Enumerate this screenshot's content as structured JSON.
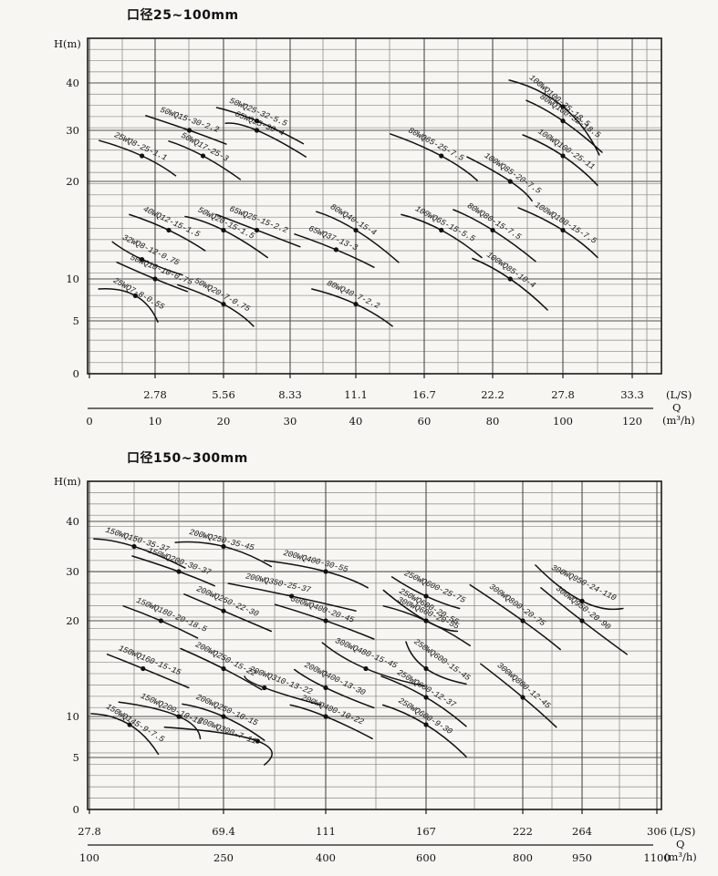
{
  "chart_data": [
    {
      "type": "line",
      "title": "口径25~100mm",
      "ylabel": "H(m)",
      "xlabel": "Q",
      "units": {
        "ls": "(L/S)",
        "q": "Q",
        "m3h": "(m³/h)"
      },
      "ylim": [
        0,
        50
      ],
      "grid": "on",
      "y_ticks": [
        {
          "label": "40",
          "h": 40
        },
        {
          "label": "30",
          "h": 30
        },
        {
          "label": "20",
          "h": 20
        },
        {
          "label": "10",
          "h": 10
        },
        {
          "label": "5",
          "h": 5
        },
        {
          "label": "0",
          "h": 0
        }
      ],
      "x_ticks_ls": [
        {
          "label": "2.78",
          "q": 10
        },
        {
          "label": "5.56",
          "q": 20
        },
        {
          "label": "8.33",
          "q": 30
        },
        {
          "label": "11.1",
          "q": 40
        },
        {
          "label": "16.7",
          "q": 60
        },
        {
          "label": "22.2",
          "q": 80
        },
        {
          "label": "27.8",
          "q": 100
        },
        {
          "label": "33.3",
          "q": 120
        }
      ],
      "x_ticks_m3h": [
        {
          "label": "0",
          "q": 0
        },
        {
          "label": "10",
          "q": 10
        },
        {
          "label": "20",
          "q": 20
        },
        {
          "label": "30",
          "q": 30
        },
        {
          "label": "40",
          "q": 40
        },
        {
          "label": "60",
          "q": 60
        },
        {
          "label": "80",
          "q": 80
        },
        {
          "label": "100",
          "q": 100
        },
        {
          "label": "120",
          "q": 120
        }
      ],
      "series": [
        {
          "name": "25WQ8-25-1.1",
          "q": 8,
          "h": 25,
          "kw": 1.1,
          "cq": [
            1.5,
            13
          ],
          "ch": [
            28,
            21.1
          ]
        },
        {
          "name": "50WQ15-30-2.2",
          "q": 15,
          "h": 30,
          "kw": 2.2,
          "cq": [
            8.6,
            20.4
          ],
          "ch": [
            33.1,
            27.3
          ]
        },
        {
          "name": "50WQ17-25-3",
          "q": 17,
          "h": 25,
          "kw": 3,
          "cq": [
            12,
            22.5
          ],
          "ch": [
            27.9,
            20.4
          ]
        },
        {
          "name": "50WQ25-32-5.5",
          "q": 25,
          "h": 32,
          "kw": 5.5,
          "cq": [
            19,
            32
          ],
          "ch": [
            34.8,
            27.4
          ]
        },
        {
          "name": "65WQ25-30-4",
          "q": 25,
          "h": 30,
          "kw": 4,
          "cq": [
            20.3,
            32.4
          ],
          "ch": [
            31.5,
            24.8
          ]
        },
        {
          "name": "100WQ100-35-18.5",
          "q": 100,
          "h": 35,
          "kw": 18.5,
          "cq": [
            84.7,
            110.5
          ],
          "ch": [
            40.6,
            25.2
          ]
        },
        {
          "name": "80WQ100-32-18.5",
          "q": 100,
          "h": 32,
          "kw": 18.5,
          "cq": [
            89.6,
            111.3
          ],
          "ch": [
            36.3,
            25.7
          ]
        },
        {
          "name": "100WQ100-25-11",
          "q": 100,
          "h": 25,
          "kw": 11,
          "cq": [
            88.6,
            110
          ],
          "ch": [
            29.1,
            19.6
          ]
        },
        {
          "name": "80WQ65-25-7.5",
          "q": 65,
          "h": 25,
          "kw": 7.5,
          "cq": [
            50.1,
            75.5
          ],
          "ch": [
            29.3,
            20.2
          ]
        },
        {
          "name": "100WQ85-20-7.5",
          "q": 85,
          "h": 20,
          "kw": 7.5,
          "cq": [
            72.5,
            91.2
          ],
          "ch": [
            24.8,
            18
          ]
        },
        {
          "name": "40WQ12-15-1.5",
          "q": 12,
          "h": 15,
          "kw": 1.5,
          "cq": [
            6.1,
            17.3
          ],
          "ch": [
            16.6,
            12.9
          ]
        },
        {
          "name": "65WQ25-15-2.2",
          "q": 25,
          "h": 15,
          "kw": 2.2,
          "cq": [
            19,
            31.5
          ],
          "ch": [
            16.6,
            13.3
          ]
        },
        {
          "name": "50WQ20-15-1.5",
          "q": 20,
          "h": 15,
          "kw": 1.5,
          "cq": [
            14.4,
            26.6
          ],
          "ch": [
            16.4,
            12.2
          ]
        },
        {
          "name": "80WQ40-15-4",
          "q": 40,
          "h": 15,
          "kw": 4,
          "cq": [
            34,
            52.5
          ],
          "ch": [
            16.9,
            11.7
          ]
        },
        {
          "name": "65WQ37-13-3",
          "q": 37,
          "h": 13,
          "kw": 3,
          "cq": [
            30.7,
            45.3
          ],
          "ch": [
            14.6,
            11.2
          ]
        },
        {
          "name": "100WQ65-15-5.5",
          "q": 65,
          "h": 15,
          "kw": 5.5,
          "cq": [
            53.3,
            76.8
          ],
          "ch": [
            16.6,
            12.2
          ]
        },
        {
          "name": "80WQ80-15-7.5",
          "q": 80,
          "h": 15,
          "kw": 7.5,
          "cq": [
            68.5,
            92.2
          ],
          "ch": [
            17.1,
            11.8
          ]
        },
        {
          "name": "100WQ100-15-7.5",
          "q": 100,
          "h": 15,
          "kw": 7.5,
          "cq": [
            87.3,
            110
          ],
          "ch": [
            17.3,
            12.2
          ]
        },
        {
          "name": "32WQ8-12-0.75",
          "q": 8,
          "h": 12,
          "kw": 0.75,
          "cq": [
            3.5,
            14
          ],
          "ch": [
            13.8,
            10.4
          ]
        },
        {
          "name": "50WQ10-10-0.75",
          "q": 10,
          "h": 10,
          "kw": 0.75,
          "cq": [
            4.2,
            14.7
          ],
          "ch": [
            11.7,
            8.5
          ]
        },
        {
          "name": "25WQ7-8-0.55",
          "q": 7,
          "h": 8,
          "kw": 0.55,
          "cq": [
            1.4,
            10.4
          ],
          "ch": [
            8.8,
            4.9
          ]
        },
        {
          "name": "50WQ20-7-0.75",
          "q": 20,
          "h": 7,
          "kw": 0.75,
          "cq": [
            13.3,
            24.5
          ],
          "ch": [
            9.3,
            4.5
          ]
        },
        {
          "name": "80WQ40-7-2.2",
          "q": 40,
          "h": 7,
          "kw": 2.2,
          "cq": [
            33.3,
            50.7
          ],
          "ch": [
            8.8,
            4.5
          ]
        },
        {
          "name": "100WQ85-10-4",
          "q": 85,
          "h": 10,
          "kw": 4,
          "cq": [
            74.1,
            95.6
          ],
          "ch": [
            12.1,
            6.3
          ]
        }
      ]
    },
    {
      "type": "line",
      "title": "口径150~300mm",
      "ylabel": "H(m)",
      "xlabel": "Q",
      "units": {
        "ls": "(L/S)",
        "q": "Q",
        "m3h": "(m³/h)"
      },
      "ylim": [
        0,
        50
      ],
      "grid": "on",
      "y_ticks": [
        {
          "label": "40",
          "h": 40
        },
        {
          "label": "30",
          "h": 30
        },
        {
          "label": "20",
          "h": 20
        },
        {
          "label": "10",
          "h": 10
        },
        {
          "label": "5",
          "h": 5
        },
        {
          "label": "0",
          "h": 0
        }
      ],
      "x_ticks_ls": [
        {
          "label": "27.8",
          "q": 100
        },
        {
          "label": "69.4",
          "q": 250
        },
        {
          "label": "111",
          "q": 400
        },
        {
          "label": "167",
          "q": 600
        },
        {
          "label": "222",
          "q": 800
        },
        {
          "label": "264",
          "q": 950
        },
        {
          "label": "306",
          "q": 1100
        }
      ],
      "x_ticks_m3h": [
        {
          "label": "100",
          "q": 100
        },
        {
          "label": "250",
          "q": 250
        },
        {
          "label": "400",
          "q": 400
        },
        {
          "label": "600",
          "q": 600
        },
        {
          "label": "800",
          "q": 800
        },
        {
          "label": "950",
          "q": 950
        },
        {
          "label": "1100",
          "q": 1100
        }
      ],
      "series": [
        {
          "name": "150WQ150-35-37",
          "q": 150,
          "h": 35,
          "kw": 37,
          "cq": [
            105,
            207
          ],
          "ch": [
            36.5,
            30.7
          ]
        },
        {
          "name": "200WQ250-35-45",
          "q": 250,
          "h": 35,
          "kw": 45,
          "cq": [
            196,
            320
          ],
          "ch": [
            35.8,
            31
          ]
        },
        {
          "name": "200WQ400-30-55",
          "q": 400,
          "h": 30,
          "kw": 55,
          "cq": [
            310,
            484
          ],
          "ch": [
            32.2,
            26.7
          ]
        },
        {
          "name": "150WQ200-30-37",
          "q": 200,
          "h": 30,
          "kw": 37,
          "cq": [
            148,
            240
          ],
          "ch": [
            33.1,
            27.1
          ]
        },
        {
          "name": "200WQ350-25-37",
          "q": 350,
          "h": 25,
          "kw": 37,
          "cq": [
            257,
            460
          ],
          "ch": [
            27.6,
            22
          ]
        },
        {
          "name": "250WQ600-25-75",
          "q": 600,
          "h": 25,
          "kw": 75,
          "cq": [
            532,
            669
          ],
          "ch": [
            28.9,
            22.5
          ]
        },
        {
          "name": "300WQ950-24-110",
          "q": 950,
          "h": 24,
          "kw": 110,
          "cq": [
            832,
            1032
          ],
          "ch": [
            31.3,
            22.5
          ]
        },
        {
          "name": "300WQ800-20-75",
          "q": 800,
          "h": 20,
          "kw": 75,
          "cq": [
            691,
            895
          ],
          "ch": [
            27.3,
            17
          ]
        },
        {
          "name": "300WQ950-20-90",
          "q": 950,
          "h": 20,
          "kw": 90,
          "cq": [
            846,
            1040
          ],
          "ch": [
            26.7,
            16.5
          ]
        },
        {
          "name": "250WQ600-20-55",
          "q": 600,
          "h": 20,
          "kw": 55,
          "cq": [
            515,
            665
          ],
          "ch": [
            26.2,
            18.9
          ]
        },
        {
          "name": "300WQ600-20-55",
          "q": 600,
          "h": 20,
          "kw": 55,
          "cq": [
            515,
            691
          ],
          "ch": [
            23,
            17.4
          ]
        },
        {
          "name": "150WQ180-20-18.5",
          "q": 180,
          "h": 20,
          "kw": 18.5,
          "cq": [
            138,
            221
          ],
          "ch": [
            23,
            18.2
          ]
        },
        {
          "name": "200WQ250-22-30",
          "q": 250,
          "h": 22,
          "kw": 30,
          "cq": [
            206,
            320
          ],
          "ch": [
            25.4,
            18.9
          ]
        },
        {
          "name": "300WQ400-20-45",
          "q": 400,
          "h": 20,
          "kw": 45,
          "cq": [
            326,
            496
          ],
          "ch": [
            23.3,
            18.1
          ]
        },
        {
          "name": "150WQ160-15-15",
          "q": 160,
          "h": 15,
          "kw": 15,
          "cq": [
            120,
            211
          ],
          "ch": [
            16.5,
            13
          ]
        },
        {
          "name": "200WQ250-15-22",
          "q": 250,
          "h": 15,
          "kw": 22,
          "cq": [
            202,
            306
          ],
          "ch": [
            17.1,
            12.8
          ]
        },
        {
          "name": "300WQ480-15-45",
          "q": 480,
          "h": 15,
          "kw": 45,
          "cq": [
            395,
            596
          ],
          "ch": [
            17.7,
            13.2
          ]
        },
        {
          "name": "250WQ600-15-45",
          "q": 600,
          "h": 15,
          "kw": 45,
          "cq": [
            560,
            683
          ],
          "ch": [
            17.8,
            13.4
          ]
        },
        {
          "name": "200WQ310-13-22",
          "q": 310,
          "h": 13,
          "kw": 22,
          "cq": [
            281,
            393
          ],
          "ch": [
            14.2,
            11.2
          ]
        },
        {
          "name": "200WQ400-13-30",
          "q": 400,
          "h": 13,
          "kw": 30,
          "cq": [
            354,
            496
          ],
          "ch": [
            14.9,
            10.9
          ]
        },
        {
          "name": "300WQ800-12-45",
          "q": 800,
          "h": 12,
          "kw": 45,
          "cq": [
            713,
            885
          ],
          "ch": [
            15.5,
            8.7
          ]
        },
        {
          "name": "250WQ600-12-37",
          "q": 600,
          "h": 12,
          "kw": 37,
          "cq": [
            511,
            683
          ],
          "ch": [
            14.2,
            8.8
          ]
        },
        {
          "name": "150WQ200-10-15",
          "q": 200,
          "h": 10,
          "kw": 15,
          "cq": [
            133,
            224
          ],
          "ch": [
            11.5,
            7.3
          ]
        },
        {
          "name": "200WQ250-10-15",
          "q": 250,
          "h": 10,
          "kw": 15,
          "cq": [
            204,
            310
          ],
          "ch": [
            11.3,
            7.1
          ]
        },
        {
          "name": "200WQ400-10-22",
          "q": 400,
          "h": 10,
          "kw": 22,
          "cq": [
            348,
            493
          ],
          "ch": [
            11.2,
            7.3
          ]
        },
        {
          "name": "250WQ600-9-30",
          "q": 600,
          "h": 9,
          "kw": 30,
          "cq": [
            514,
            683
          ],
          "ch": [
            11.2,
            5.1
          ]
        },
        {
          "name": "150WQ145-9-7.5",
          "q": 145,
          "h": 9,
          "kw": 7.5,
          "cq": [
            102,
            177
          ],
          "ch": [
            10.3,
            5.4
          ]
        },
        {
          "name": "200WQ300-7-11",
          "q": 300,
          "h": 7,
          "kw": 11,
          "cq": [
            184,
            310
          ],
          "ch": [
            8.7,
            4.3
          ]
        }
      ]
    }
  ]
}
